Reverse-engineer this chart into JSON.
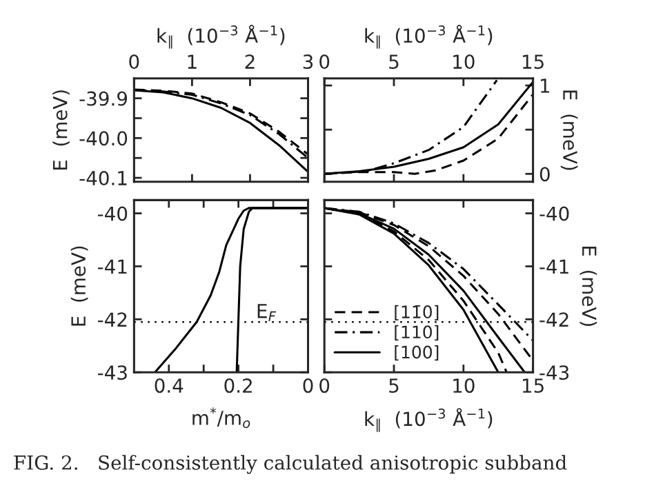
{
  "chart_data": [
    {
      "type": "line",
      "xlabel": "k$_{∥}$  (10$^{−3}$ Å$^{−1}$)",
      "ylabel": "E  (meV)",
      "xlim": [
        0,
        3
      ],
      "xticks": [
        0,
        1,
        2,
        3
      ],
      "ylim": [
        -40.11,
        -39.85
      ],
      "yticks": [
        -39.9,
        {
          "value": -39.95,
          "label": null
        },
        {
          "value": -40,
          "label": "-40.0"
        },
        {
          "value": -40.05,
          "label": null
        },
        -40.1
      ],
      "grid": false,
      "legend": false,
      "series": [
        {
          "color": "#000000",
          "line_style": "solid",
          "x": [
            0,
            0.5,
            1,
            1.5,
            2,
            2.5,
            3
          ],
          "values": [
            -39.88,
            -39.885,
            -39.9,
            -39.924,
            -39.962,
            -40.018,
            -40.085
          ]
        },
        {
          "color": "#000000",
          "line_style": "dashed",
          "x": [
            0,
            0.5,
            1,
            1.5,
            2,
            2.5,
            3
          ],
          "values": [
            -39.878,
            -39.881,
            -39.888,
            -39.91,
            -39.938,
            -39.984,
            -40.041
          ]
        },
        {
          "color": "#000000",
          "line_style": "dashdot",
          "x": [
            0,
            0.5,
            1,
            1.5,
            2,
            2.5,
            3
          ],
          "values": [
            -39.879,
            -39.883,
            -39.891,
            -39.913,
            -39.942,
            -39.99,
            -40.05
          ]
        }
      ]
    },
    {
      "type": "line",
      "xlabel": "k$_{∥}$  (10$^{−3}$ Å$^{−1}$)",
      "ylabel": "E  (meV)",
      "xlim": [
        0,
        15
      ],
      "xticks": [
        0,
        5,
        10,
        15
      ],
      "ylim": [
        -0.09,
        1.08
      ],
      "yticks": [
        0,
        {
          "value": 0.5,
          "label": null
        },
        1
      ],
      "grid": false,
      "legend": false,
      "series": [
        {
          "color": "#000000",
          "line_style": "solid",
          "x": [
            0,
            2.5,
            5,
            7.5,
            10,
            12.5,
            15
          ],
          "values": [
            0,
            0.03,
            0.08,
            0.17,
            0.3,
            0.56,
            1.04
          ]
        },
        {
          "color": "#000000",
          "line_style": "dashed",
          "x": [
            0,
            2.5,
            5,
            6.5,
            8,
            10,
            12.5,
            15
          ],
          "values": [
            0,
            0.02,
            0.02,
            0,
            0.04,
            0.15,
            0.4,
            0.9
          ]
        },
        {
          "color": "#000000",
          "line_style": "dashdot",
          "x": [
            0,
            3,
            5,
            7.5,
            10,
            12.4
          ],
          "values": [
            0,
            0.03,
            0.12,
            0.27,
            0.53,
            1.06
          ]
        }
      ]
    },
    {
      "type": "line",
      "xlabel": "m$^{*}$/m$_{o}$",
      "ylabel": "E  (meV)",
      "xlim": [
        0.5,
        0
      ],
      "xticks": [
        0.4,
        {
          "value": 0.3,
          "label": null
        },
        0.2,
        {
          "value": 0.1,
          "label": null
        },
        0
      ],
      "ylim": [
        -43,
        -39.75
      ],
      "yticks": [
        -40,
        -41,
        -42,
        -43
      ],
      "grid": false,
      "legend": false,
      "ref_lines": [
        {
          "axis": "y",
          "value": -42.05,
          "label": "E$_{F}$",
          "line_style": "dotted"
        }
      ],
      "series": [
        {
          "color": "#000000",
          "line_style": "solid",
          "x": [
            0.44,
            0.38,
            0.32,
            0.28,
            0.255,
            0.235,
            0.2,
            0.185,
            0.17,
            0
          ],
          "values": [
            -43,
            -42.55,
            -42.05,
            -41.55,
            -41.1,
            -40.6,
            -40.1,
            -39.95,
            -39.9,
            -39.9
          ]
        },
        {
          "color": "#000000",
          "line_style": "solid",
          "x": [
            0.205,
            0.2,
            0.195,
            0.185,
            0.17,
            0.16,
            0
          ],
          "values": [
            -43,
            -42,
            -41,
            -40.3,
            -39.97,
            -39.9,
            -39.9
          ]
        }
      ]
    },
    {
      "type": "line",
      "xlabel": "k$_{∥}$  (10$^{−3}$ Å$^{−1}$)",
      "ylabel": "E  (meV)",
      "xlim": [
        0,
        15
      ],
      "xticks": [
        0,
        5,
        10,
        15
      ],
      "ylim": [
        -43,
        -39.75
      ],
      "yticks": [
        -40,
        -41,
        -42,
        -43
      ],
      "grid": false,
      "legend": "lower left",
      "ref_lines": [
        {
          "axis": "y",
          "value": -42.05,
          "line_style": "dotted"
        }
      ],
      "annotations": [
        "FIG. 2.   Self-consistently calculated anisotropic subband"
      ],
      "series": [
        {
          "name": "[11̄0]",
          "color": "#000000",
          "line_style": "dashed",
          "x": [
            0,
            2.5,
            5,
            7.5,
            10,
            12.5,
            13.1
          ],
          "values": [
            -39.9,
            -40.01,
            -40.34,
            -40.88,
            -41.65,
            -42.63,
            -43.0
          ]
        },
        {
          "name": "[110]",
          "color": "#000000",
          "line_style": "dashdot",
          "x": [
            0,
            2.5,
            5,
            7.5,
            10,
            12.5,
            15
          ],
          "values": [
            -39.9,
            -39.97,
            -40.19,
            -40.56,
            -41.05,
            -41.72,
            -42.4
          ]
        },
        {
          "name": "[100]",
          "color": "#000000",
          "line_style": "solid",
          "x": [
            0,
            2.5,
            5,
            7.5,
            10,
            12.5
          ],
          "values": [
            -39.9,
            -40.02,
            -40.38,
            -40.98,
            -41.82,
            -43.0
          ]
        },
        {
          "color": "#000000",
          "line_style": "solid",
          "x": [
            0,
            2.5,
            5,
            7.5,
            10,
            12.5,
            14.4
          ],
          "values": [
            -39.9,
            -40.0,
            -40.29,
            -40.78,
            -41.46,
            -42.34,
            -43.0
          ]
        },
        {
          "color": "#000000",
          "line_style": "dashed",
          "x": [
            0,
            2.5,
            5,
            7.5,
            10,
            12.5,
            15
          ],
          "values": [
            -39.9,
            -39.98,
            -40.22,
            -40.62,
            -41.18,
            -41.9,
            -42.78
          ]
        }
      ]
    }
  ]
}
